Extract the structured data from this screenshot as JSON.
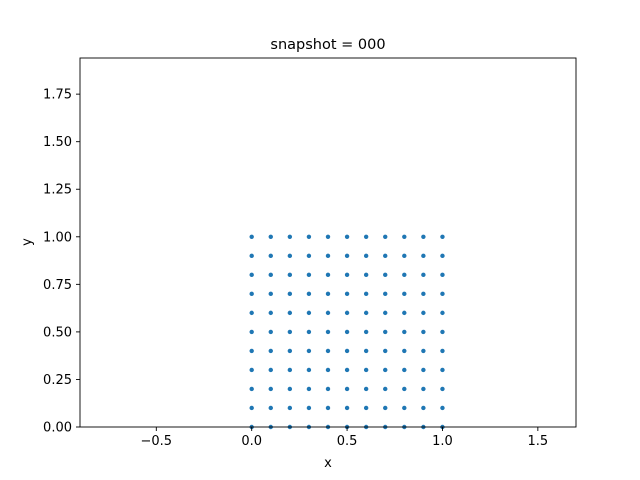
{
  "chart_data": {
    "type": "scatter",
    "title": "snapshot = 000",
    "xlabel": "x",
    "ylabel": "y",
    "xlim": [
      -0.9,
      1.7
    ],
    "ylim": [
      0.0,
      1.94
    ],
    "xticks": [
      -0.5,
      0.0,
      0.5,
      1.0,
      1.5
    ],
    "xtick_labels": [
      "−0.5",
      "0.0",
      "0.5",
      "1.0",
      "1.5"
    ],
    "yticks": [
      0.0,
      0.25,
      0.5,
      0.75,
      1.0,
      1.25,
      1.5,
      1.75
    ],
    "ytick_labels": [
      "0.00",
      "0.25",
      "0.50",
      "0.75",
      "1.00",
      "1.25",
      "1.50",
      "1.75"
    ],
    "grid": false,
    "series": [
      {
        "color": "#1f77b4",
        "points": [
          [
            0.0,
            0.0
          ],
          [
            0.1,
            0.0
          ],
          [
            0.2,
            0.0
          ],
          [
            0.3,
            0.0
          ],
          [
            0.4,
            0.0
          ],
          [
            0.5,
            0.0
          ],
          [
            0.6,
            0.0
          ],
          [
            0.7,
            0.0
          ],
          [
            0.8,
            0.0
          ],
          [
            0.9,
            0.0
          ],
          [
            1.0,
            0.0
          ],
          [
            0.0,
            0.1
          ],
          [
            0.1,
            0.1
          ],
          [
            0.2,
            0.1
          ],
          [
            0.3,
            0.1
          ],
          [
            0.4,
            0.1
          ],
          [
            0.5,
            0.1
          ],
          [
            0.6,
            0.1
          ],
          [
            0.7,
            0.1
          ],
          [
            0.8,
            0.1
          ],
          [
            0.9,
            0.1
          ],
          [
            1.0,
            0.1
          ],
          [
            0.0,
            0.2
          ],
          [
            0.1,
            0.2
          ],
          [
            0.2,
            0.2
          ],
          [
            0.3,
            0.2
          ],
          [
            0.4,
            0.2
          ],
          [
            0.5,
            0.2
          ],
          [
            0.6,
            0.2
          ],
          [
            0.7,
            0.2
          ],
          [
            0.8,
            0.2
          ],
          [
            0.9,
            0.2
          ],
          [
            1.0,
            0.2
          ],
          [
            0.0,
            0.3
          ],
          [
            0.1,
            0.3
          ],
          [
            0.2,
            0.3
          ],
          [
            0.3,
            0.3
          ],
          [
            0.4,
            0.3
          ],
          [
            0.5,
            0.3
          ],
          [
            0.6,
            0.3
          ],
          [
            0.7,
            0.3
          ],
          [
            0.8,
            0.3
          ],
          [
            0.9,
            0.3
          ],
          [
            1.0,
            0.3
          ],
          [
            0.0,
            0.4
          ],
          [
            0.1,
            0.4
          ],
          [
            0.2,
            0.4
          ],
          [
            0.3,
            0.4
          ],
          [
            0.4,
            0.4
          ],
          [
            0.5,
            0.4
          ],
          [
            0.6,
            0.4
          ],
          [
            0.7,
            0.4
          ],
          [
            0.8,
            0.4
          ],
          [
            0.9,
            0.4
          ],
          [
            1.0,
            0.4
          ],
          [
            0.0,
            0.5
          ],
          [
            0.1,
            0.5
          ],
          [
            0.2,
            0.5
          ],
          [
            0.3,
            0.5
          ],
          [
            0.4,
            0.5
          ],
          [
            0.5,
            0.5
          ],
          [
            0.6,
            0.5
          ],
          [
            0.7,
            0.5
          ],
          [
            0.8,
            0.5
          ],
          [
            0.9,
            0.5
          ],
          [
            1.0,
            0.5
          ],
          [
            0.0,
            0.6
          ],
          [
            0.1,
            0.6
          ],
          [
            0.2,
            0.6
          ],
          [
            0.3,
            0.6
          ],
          [
            0.4,
            0.6
          ],
          [
            0.5,
            0.6
          ],
          [
            0.6,
            0.6
          ],
          [
            0.7,
            0.6
          ],
          [
            0.8,
            0.6
          ],
          [
            0.9,
            0.6
          ],
          [
            1.0,
            0.6
          ],
          [
            0.0,
            0.7
          ],
          [
            0.1,
            0.7
          ],
          [
            0.2,
            0.7
          ],
          [
            0.3,
            0.7
          ],
          [
            0.4,
            0.7
          ],
          [
            0.5,
            0.7
          ],
          [
            0.6,
            0.7
          ],
          [
            0.7,
            0.7
          ],
          [
            0.8,
            0.7
          ],
          [
            0.9,
            0.7
          ],
          [
            1.0,
            0.7
          ],
          [
            0.0,
            0.8
          ],
          [
            0.1,
            0.8
          ],
          [
            0.2,
            0.8
          ],
          [
            0.3,
            0.8
          ],
          [
            0.4,
            0.8
          ],
          [
            0.5,
            0.8
          ],
          [
            0.6,
            0.8
          ],
          [
            0.7,
            0.8
          ],
          [
            0.8,
            0.8
          ],
          [
            0.9,
            0.8
          ],
          [
            1.0,
            0.8
          ],
          [
            0.0,
            0.9
          ],
          [
            0.1,
            0.9
          ],
          [
            0.2,
            0.9
          ],
          [
            0.3,
            0.9
          ],
          [
            0.4,
            0.9
          ],
          [
            0.5,
            0.9
          ],
          [
            0.6,
            0.9
          ],
          [
            0.7,
            0.9
          ],
          [
            0.8,
            0.9
          ],
          [
            0.9,
            0.9
          ],
          [
            1.0,
            0.9
          ],
          [
            0.0,
            1.0
          ],
          [
            0.1,
            1.0
          ],
          [
            0.2,
            1.0
          ],
          [
            0.3,
            1.0
          ],
          [
            0.4,
            1.0
          ],
          [
            0.5,
            1.0
          ],
          [
            0.6,
            1.0
          ],
          [
            0.7,
            1.0
          ],
          [
            0.8,
            1.0
          ],
          [
            0.9,
            1.0
          ],
          [
            1.0,
            1.0
          ]
        ]
      }
    ]
  }
}
